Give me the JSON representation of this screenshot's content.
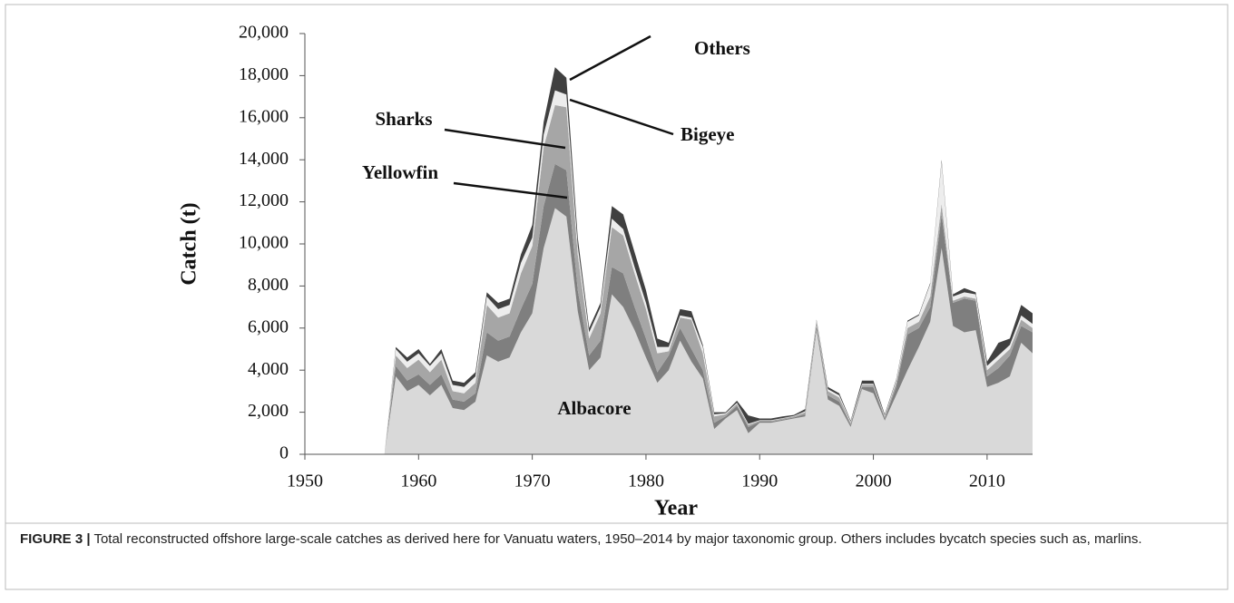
{
  "chart_data": {
    "type": "stacked_area",
    "y_label": "Catch (t)",
    "x_label": "Year",
    "caption_label": "FIGURE 3 |",
    "caption": "Total reconstructed offshore large-scale catches as derived here for Vanuatu waters, 1950–2014 by major taxonomic group. Others includes bycatch species such as, marlins.",
    "xlim": [
      1950,
      2014
    ],
    "xticks": [
      1950,
      1960,
      1970,
      1980,
      1990,
      2000,
      2010
    ],
    "ylim": [
      0,
      20000
    ],
    "yticks": [
      0,
      {
        "value": 2000,
        "label": "2,000"
      },
      {
        "value": 4000,
        "label": "4,000"
      },
      {
        "value": 6000,
        "label": "6,000"
      },
      {
        "value": 8000,
        "label": "8,000"
      },
      {
        "value": 10000,
        "label": "10,000"
      },
      {
        "value": 12000,
        "label": "12,000"
      },
      {
        "value": 14000,
        "label": "14,000"
      },
      {
        "value": 16000,
        "label": "16,000"
      },
      {
        "value": 18000,
        "label": "18,000"
      },
      {
        "value": 20000,
        "label": "20,000"
      }
    ],
    "x": [
      1950,
      1951,
      1952,
      1953,
      1954,
      1955,
      1956,
      1957,
      1958,
      1959,
      1960,
      1961,
      1962,
      1963,
      1964,
      1965,
      1966,
      1967,
      1968,
      1969,
      1970,
      1971,
      1972,
      1973,
      1974,
      1975,
      1976,
      1977,
      1978,
      1979,
      1980,
      1981,
      1982,
      1983,
      1984,
      1985,
      1986,
      1987,
      1988,
      1989,
      1990,
      1991,
      1992,
      1993,
      1994,
      1995,
      1996,
      1997,
      1998,
      1999,
      2000,
      2001,
      2002,
      2003,
      2004,
      2005,
      2006,
      2007,
      2008,
      2009,
      2010,
      2011,
      2012,
      2013,
      2014
    ],
    "series": [
      {
        "name": "Albacore",
        "color": "#d9d9d9",
        "values": [
          0,
          0,
          0,
          0,
          0,
          0,
          0,
          0,
          3700,
          3000,
          3300,
          2800,
          3300,
          2200,
          2100,
          2500,
          4700,
          4400,
          4600,
          5800,
          6700,
          9800,
          11700,
          11300,
          6800,
          4000,
          4600,
          7600,
          7000,
          5900,
          4600,
          3400,
          4000,
          5400,
          4400,
          3600,
          1200,
          1700,
          2100,
          1000,
          1500,
          1500,
          1600,
          1700,
          1800,
          5900,
          2600,
          2300,
          1300,
          3100,
          2900,
          1600,
          2800,
          4000,
          5100,
          6300,
          9800,
          6100,
          5800,
          5900,
          3200,
          3400,
          3700,
          5300,
          4800
        ]
      },
      {
        "name": "Yellowfin",
        "color": "#7f7f7f",
        "values": [
          0,
          0,
          0,
          0,
          0,
          0,
          0,
          0,
          500,
          500,
          500,
          500,
          500,
          400,
          400,
          400,
          1100,
          1000,
          1000,
          1100,
          1400,
          2000,
          2100,
          2200,
          1000,
          700,
          800,
          1300,
          1600,
          1100,
          900,
          500,
          700,
          600,
          600,
          400,
          300,
          100,
          200,
          300,
          50,
          50,
          50,
          50,
          100,
          200,
          200,
          200,
          100,
          100,
          300,
          100,
          400,
          1700,
          900,
          700,
          1600,
          1100,
          1600,
          1400,
          500,
          700,
          1000,
          800,
          1000
        ]
      },
      {
        "name": "Sharks",
        "color": "#a6a6a6",
        "values": [
          0,
          0,
          0,
          0,
          0,
          0,
          0,
          0,
          500,
          600,
          700,
          600,
          700,
          400,
          400,
          500,
          1300,
          1100,
          1100,
          1700,
          1800,
          2800,
          2800,
          3000,
          1700,
          800,
          1300,
          1900,
          1800,
          1600,
          1400,
          900,
          200,
          500,
          1400,
          800,
          300,
          100,
          100,
          100,
          50,
          50,
          50,
          50,
          100,
          200,
          200,
          200,
          100,
          100,
          100,
          100,
          200,
          300,
          300,
          500,
          500,
          100,
          100,
          100,
          300,
          400,
          300,
          300,
          200
        ]
      },
      {
        "name": "Bigeye",
        "color": "#ededed",
        "values": [
          0,
          0,
          0,
          0,
          0,
          0,
          0,
          0,
          300,
          300,
          300,
          300,
          300,
          300,
          300,
          300,
          400,
          400,
          400,
          500,
          400,
          600,
          700,
          600,
          400,
          300,
          300,
          400,
          300,
          300,
          300,
          300,
          200,
          100,
          100,
          300,
          100,
          50,
          50,
          50,
          20,
          20,
          20,
          20,
          50,
          50,
          100,
          100,
          50,
          50,
          50,
          50,
          100,
          300,
          300,
          600,
          2000,
          200,
          200,
          200,
          200,
          200,
          200,
          200,
          200
        ]
      },
      {
        "name": "Others",
        "color": "#404040",
        "values": [
          0,
          0,
          0,
          0,
          0,
          0,
          0,
          0,
          100,
          200,
          200,
          100,
          200,
          200,
          200,
          200,
          200,
          300,
          300,
          400,
          600,
          600,
          1100,
          800,
          400,
          200,
          200,
          600,
          700,
          700,
          600,
          400,
          200,
          300,
          300,
          100,
          100,
          50,
          100,
          400,
          80,
          80,
          80,
          50,
          100,
          50,
          100,
          100,
          50,
          150,
          150,
          50,
          50,
          50,
          50,
          50,
          100,
          100,
          200,
          100,
          200,
          600,
          300,
          500,
          500
        ]
      }
    ]
  }
}
